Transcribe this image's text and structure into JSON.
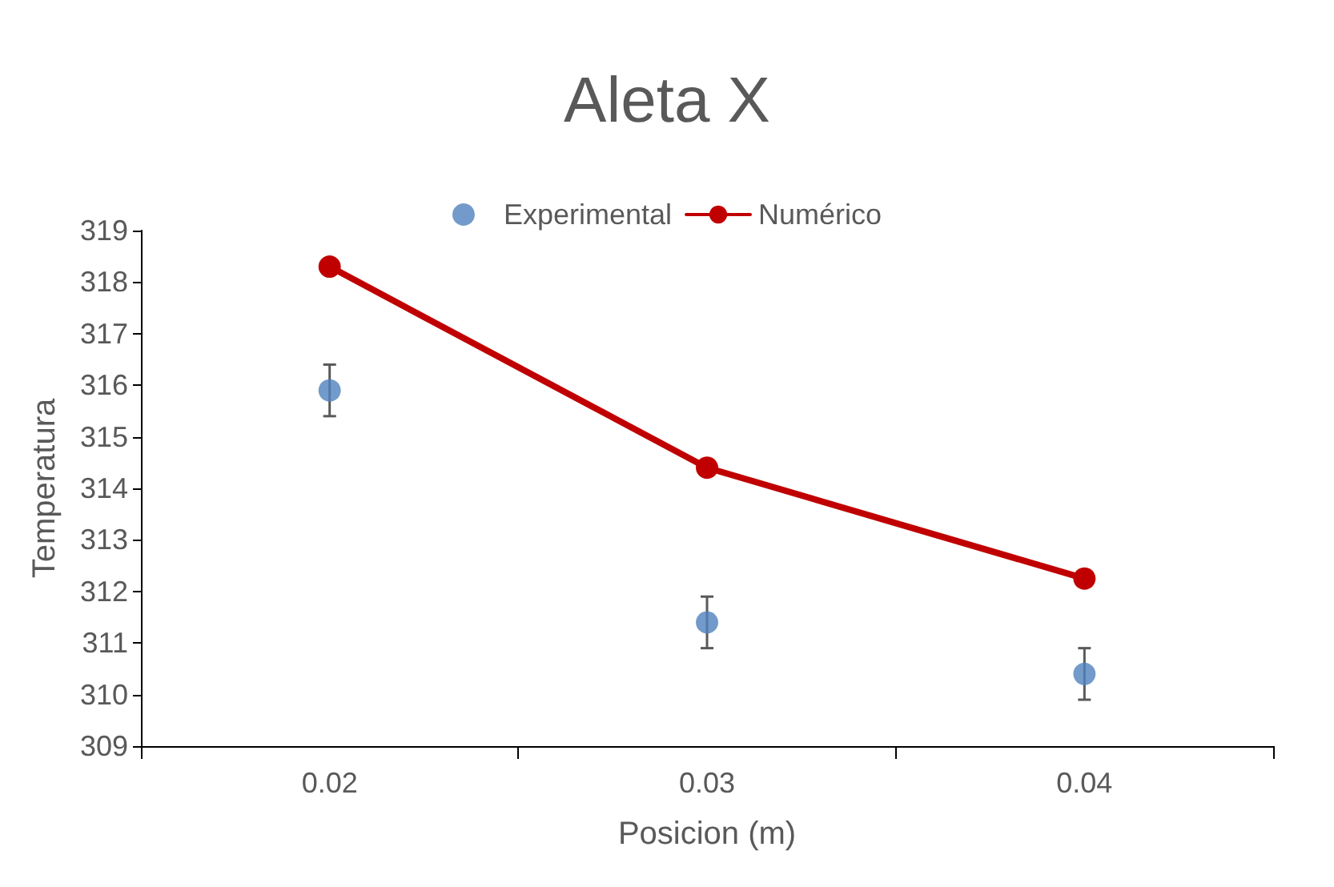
{
  "chart_data": {
    "type": "scatter",
    "title": "Aleta X",
    "xlabel": "Posicion (m)",
    "ylabel": "Temperatura",
    "categories": [
      "0.02",
      "0.03",
      "0.04"
    ],
    "series": [
      {
        "name": "Experimental",
        "color": "#4f81bd",
        "values": [
          315.9,
          311.4,
          310.4
        ],
        "errors": [
          0.5,
          0.5,
          0.5
        ]
      },
      {
        "name": "Numérico",
        "type": "line",
        "color": "#c00000",
        "values": [
          318.3,
          314.4,
          312.25
        ]
      }
    ],
    "ylim": [
      309,
      319
    ],
    "yticks": [
      309,
      310,
      311,
      312,
      313,
      314,
      315,
      316,
      317,
      318,
      319
    ],
    "grid": false,
    "legend": "top",
    "marker": "circle",
    "line_style": "solid"
  }
}
